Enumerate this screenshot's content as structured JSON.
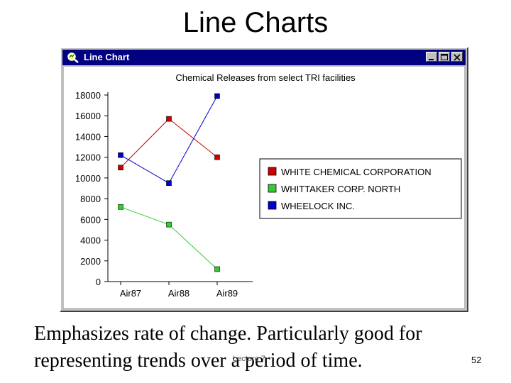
{
  "slide": {
    "title": "Line Charts",
    "caption_line1": "Emphasizes rate of change.  Particularly good for",
    "caption_line2": "representing trends over a period of time.",
    "footer": "Lecture 7",
    "page_number": "52"
  },
  "window": {
    "title": "Line Chart",
    "icon": "magnifier-chart-icon",
    "titlebar_color": "#000080"
  },
  "chart_data": {
    "type": "line",
    "title": "Chemical Releases from select TRI facilities",
    "categories": [
      "Air87",
      "Air88",
      "Air89"
    ],
    "ylim": [
      0,
      18000
    ],
    "yticks": [
      0,
      2000,
      4000,
      6000,
      8000,
      10000,
      12000,
      14000,
      16000,
      18000
    ],
    "legend_position": "right",
    "series": [
      {
        "name": "WHITE CHEMICAL CORPORATION",
        "values": [
          11000,
          15700,
          12000
        ],
        "color": "#cc0000"
      },
      {
        "name": "WHITTAKER CORP. NORTH",
        "values": [
          7200,
          5500,
          1200
        ],
        "color": "#33cc33"
      },
      {
        "name": "WHEELOCK INC.",
        "values": [
          12200,
          9500,
          17900
        ],
        "color": "#0000cc"
      }
    ]
  }
}
